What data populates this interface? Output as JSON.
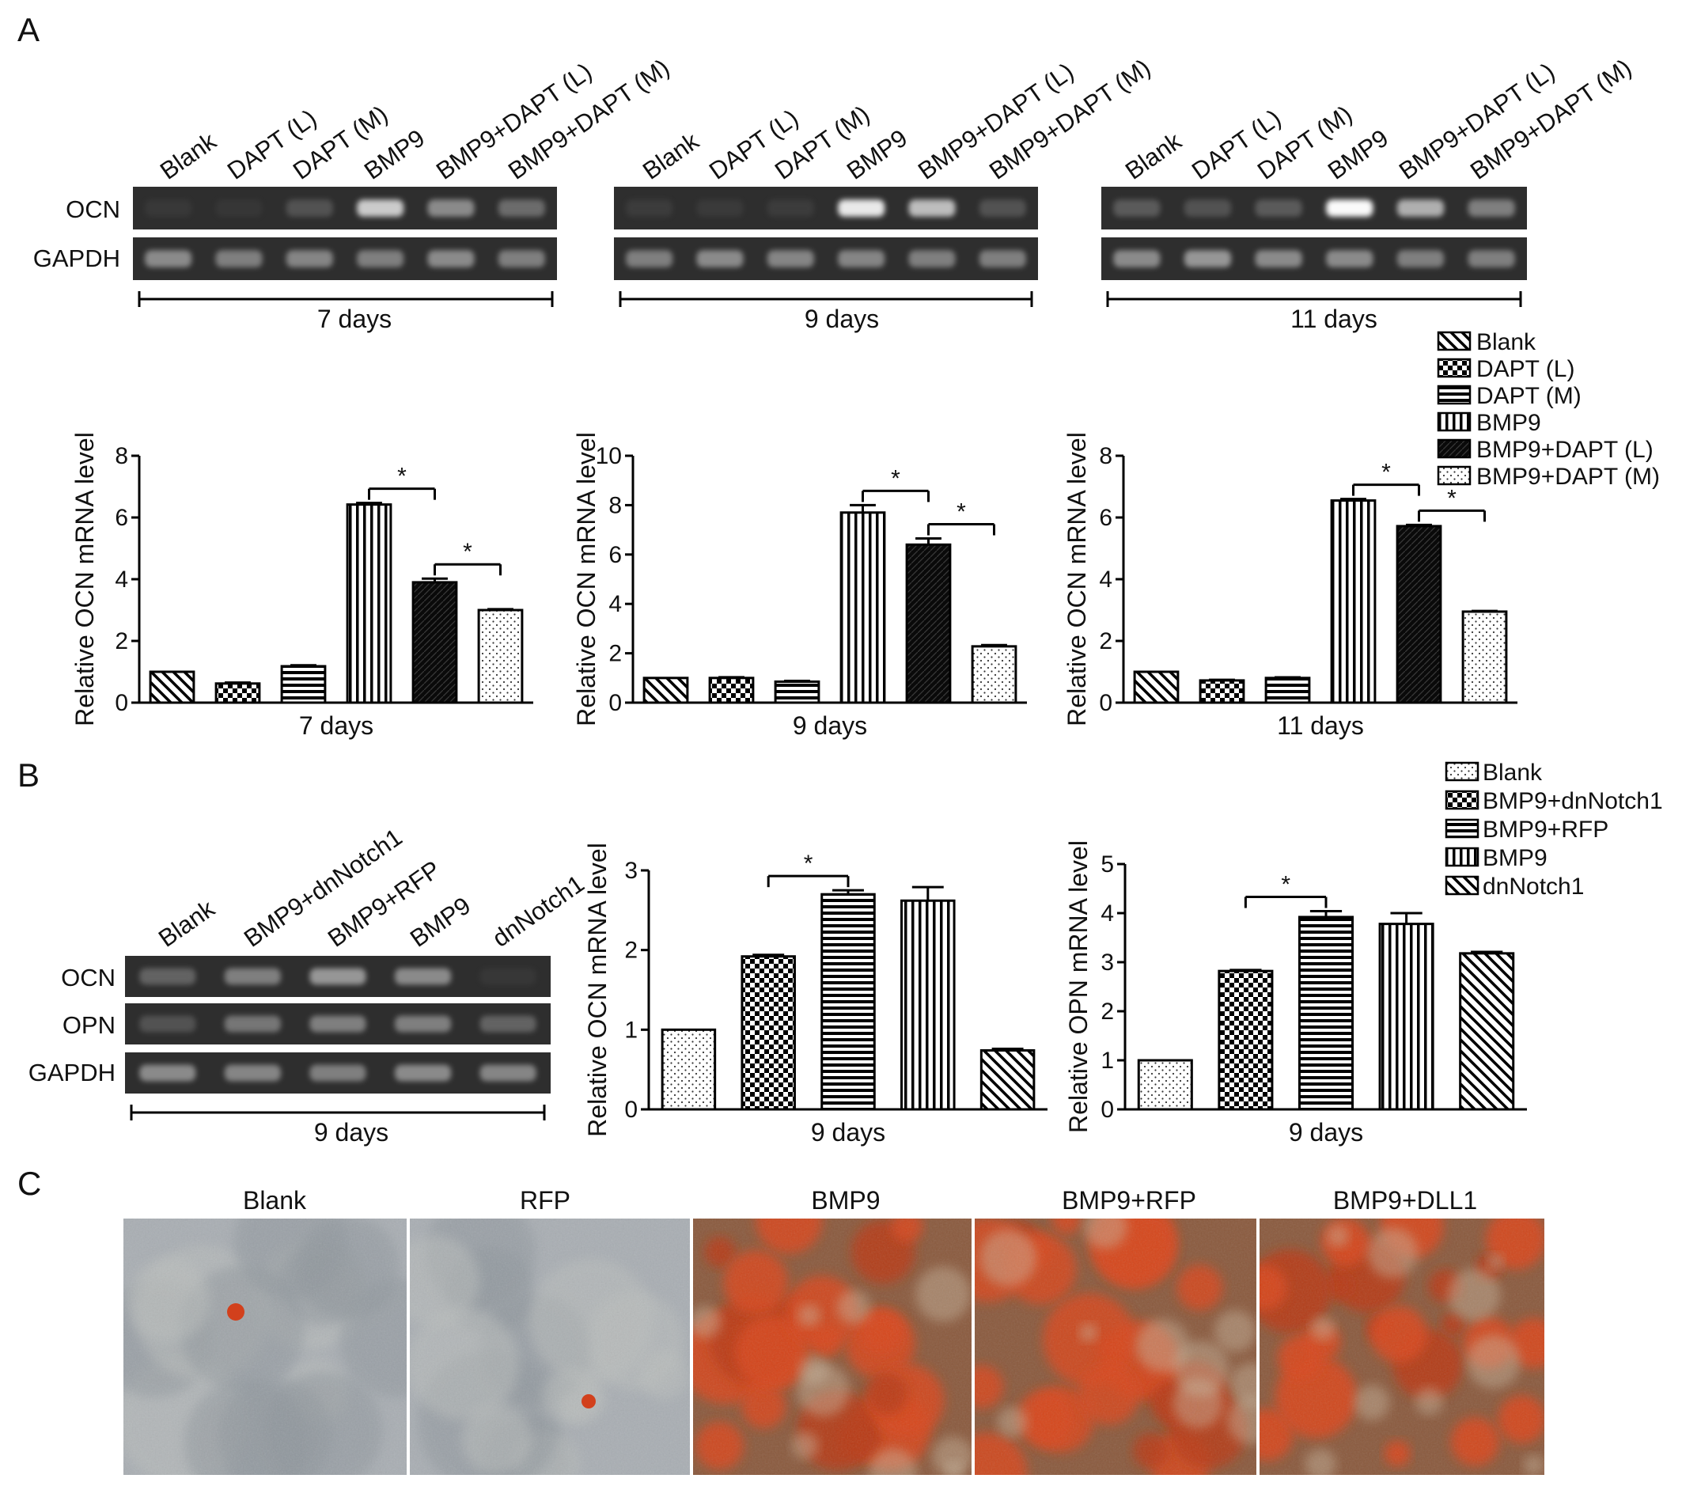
{
  "panels": {
    "A": "A",
    "B": "B",
    "C": "C"
  },
  "panel_a": {
    "lanes": [
      "Blank",
      "DAPT (L)",
      "DAPT (M)",
      "BMP9",
      "BMP9+DAPT (L)",
      "BMP9+DAPT (M)"
    ],
    "row_labels": [
      "OCN",
      "GAPDH"
    ],
    "gels": [
      {
        "caption": "7 days",
        "ocn_intensity": [
          0.06,
          0.04,
          0.3,
          0.85,
          0.6,
          0.45
        ],
        "gapdh_intensity": [
          0.6,
          0.55,
          0.58,
          0.55,
          0.6,
          0.55
        ]
      },
      {
        "caption": "9 days",
        "ocn_intensity": [
          0.1,
          0.08,
          0.1,
          0.95,
          0.8,
          0.3
        ],
        "gapdh_intensity": [
          0.55,
          0.6,
          0.58,
          0.58,
          0.55,
          0.55
        ]
      },
      {
        "caption": "11 days",
        "ocn_intensity": [
          0.35,
          0.3,
          0.35,
          1.0,
          0.75,
          0.55
        ],
        "gapdh_intensity": [
          0.6,
          0.65,
          0.6,
          0.6,
          0.55,
          0.55
        ]
      }
    ],
    "legend": [
      "Blank",
      "DAPT (L)",
      "DAPT (M)",
      "BMP9",
      "BMP9+DAPT (L)",
      "BMP9+DAPT (M)"
    ]
  },
  "panel_b": {
    "lanes": [
      "Blank",
      "BMP9+dnNotch1",
      "BMP9+RFP",
      "BMP9",
      "dnNotch1"
    ],
    "row_labels": [
      "OCN",
      "OPN",
      "GAPDH"
    ],
    "gel": {
      "caption": "9 days",
      "ocn_intensity": [
        0.4,
        0.55,
        0.65,
        0.6,
        0.05
      ],
      "opn_intensity": [
        0.3,
        0.5,
        0.55,
        0.55,
        0.4
      ],
      "gapdh_intensity": [
        0.6,
        0.58,
        0.55,
        0.6,
        0.58
      ]
    },
    "legend": [
      "Blank",
      "BMP9+dnNotch1",
      "BMP9+RFP",
      "BMP9",
      "dnNotch1"
    ]
  },
  "panel_c": {
    "titles": [
      "Blank",
      "RFP",
      "BMP9",
      "BMP9+RFP",
      "BMP9+DLL1"
    ],
    "stain_level": [
      0.02,
      0.02,
      0.75,
      0.7,
      0.85
    ]
  },
  "significance_marker": "*",
  "chart_data": [
    {
      "type": "bar",
      "xlabel": "7 days",
      "ylabel": "Relative OCN mRNA level",
      "ylim": [
        0,
        8
      ],
      "yticks": [
        0,
        2,
        4,
        6,
        8
      ],
      "categories": [
        "Blank",
        "DAPT (L)",
        "DAPT (M)",
        "BMP9",
        "BMP9+DAPT (L)",
        "BMP9+DAPT (M)"
      ],
      "values": [
        1.0,
        0.62,
        1.18,
        6.42,
        3.9,
        3.0
      ],
      "errors": [
        0,
        0.03,
        0.03,
        0.05,
        0.12,
        0.03
      ],
      "significance": [
        [
          3,
          4
        ],
        [
          4,
          5
        ]
      ]
    },
    {
      "type": "bar",
      "xlabel": "9 days",
      "ylabel": "Relative OCN mRNA level",
      "ylim": [
        0,
        10
      ],
      "yticks": [
        0,
        2,
        4,
        6,
        8,
        10
      ],
      "categories": [
        "Blank",
        "DAPT (L)",
        "DAPT (M)",
        "BMP9",
        "BMP9+DAPT (L)",
        "BMP9+DAPT (M)"
      ],
      "values": [
        1.0,
        1.0,
        0.85,
        7.7,
        6.4,
        2.28
      ],
      "errors": [
        0,
        0.03,
        0.03,
        0.3,
        0.25,
        0.05
      ],
      "significance": [
        [
          3,
          4
        ],
        [
          4,
          5
        ]
      ]
    },
    {
      "type": "bar",
      "xlabel": "11 days",
      "ylabel": "Relative OCN mRNA level",
      "ylim": [
        0,
        8
      ],
      "yticks": [
        0,
        2,
        4,
        6,
        8
      ],
      "categories": [
        "Blank",
        "DAPT (L)",
        "DAPT (M)",
        "BMP9",
        "BMP9+DAPT (L)",
        "BMP9+DAPT (M)"
      ],
      "values": [
        1.0,
        0.72,
        0.8,
        6.55,
        5.72,
        2.95
      ],
      "errors": [
        0,
        0.02,
        0.02,
        0.05,
        0.04,
        0.02
      ],
      "significance": [
        [
          3,
          4
        ],
        [
          4,
          5
        ]
      ]
    },
    {
      "type": "bar",
      "xlabel": "9 days",
      "ylabel": "Relative OCN mRNA level",
      "ylim": [
        0,
        3
      ],
      "yticks": [
        0,
        1,
        2,
        3
      ],
      "categories": [
        "Blank",
        "BMP9+dnNotch1",
        "BMP9+RFP",
        "BMP9",
        "dnNotch1"
      ],
      "values": [
        1.0,
        1.92,
        2.7,
        2.62,
        0.74
      ],
      "errors": [
        0,
        0.02,
        0.05,
        0.17,
        0.02
      ],
      "significance": [
        [
          1,
          2
        ]
      ]
    },
    {
      "type": "bar",
      "xlabel": "9 days",
      "ylabel": "Relative OPN mRNA level",
      "ylim": [
        0,
        5
      ],
      "yticks": [
        0,
        1,
        2,
        3,
        4,
        5
      ],
      "categories": [
        "Blank",
        "BMP9+dnNotch1",
        "BMP9+RFP",
        "BMP9",
        "dnNotch1"
      ],
      "values": [
        1.0,
        2.82,
        3.92,
        3.78,
        3.18
      ],
      "errors": [
        0,
        0.02,
        0.12,
        0.22,
        0.03
      ],
      "significance": [
        [
          1,
          2
        ]
      ]
    }
  ]
}
